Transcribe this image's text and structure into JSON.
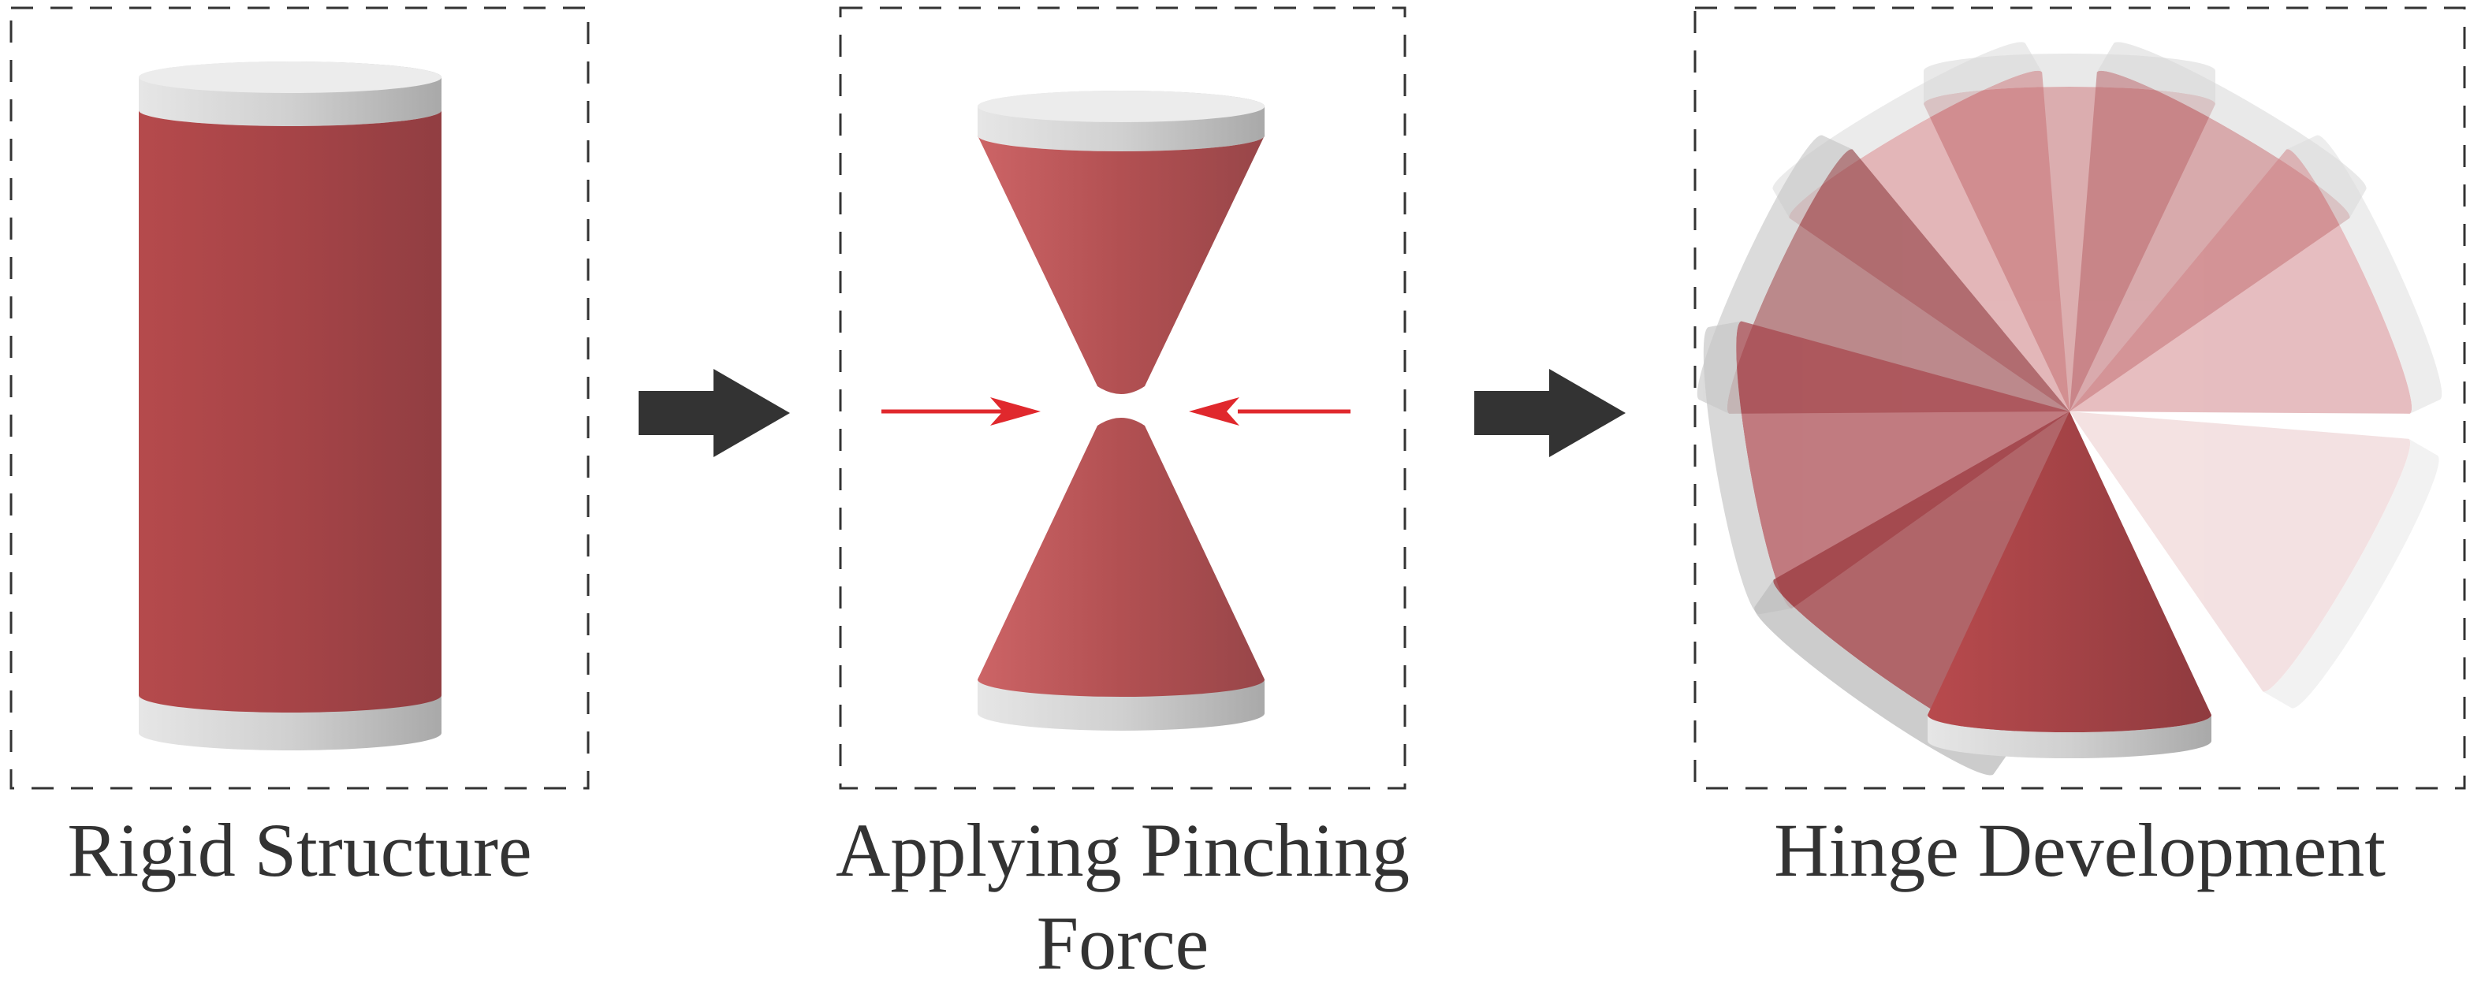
{
  "panels": [
    {
      "id": "rigid",
      "caption": "Rigid Structure"
    },
    {
      "id": "pinch",
      "caption_line1": "Applying Pinching",
      "caption_line2": "Force"
    },
    {
      "id": "hinge",
      "caption": "Hinge Development"
    }
  ],
  "colors": {
    "body_red": "#b54a4c",
    "body_red_dark": "#963f43",
    "plate_gray": "#c8c8c8",
    "force_arrow": "#e0282d",
    "step_arrow": "#333333",
    "frame_dash": "#333333",
    "caption_text": "#333333"
  },
  "icons": {
    "step_arrow_1": "right-arrow-icon",
    "step_arrow_2": "right-arrow-icon",
    "force_arrow_left": "right-arrow-icon",
    "force_arrow_right": "left-arrow-icon"
  }
}
